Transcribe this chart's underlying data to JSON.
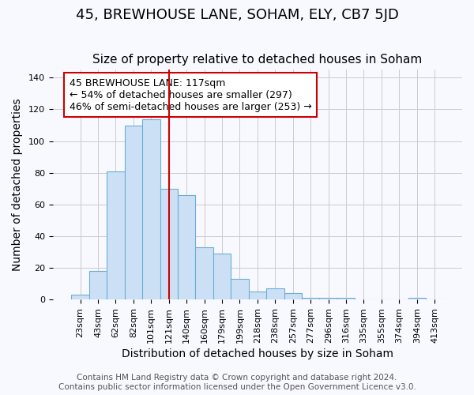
{
  "title": "45, BREWHOUSE LANE, SOHAM, ELY, CB7 5JD",
  "subtitle": "Size of property relative to detached houses in Soham",
  "xlabel": "Distribution of detached houses by size in Soham",
  "ylabel": "Number of detached properties",
  "footer_lines": [
    "Contains HM Land Registry data © Crown copyright and database right 2024.",
    "Contains public sector information licensed under the Open Government Licence v3.0."
  ],
  "bin_labels": [
    "23sqm",
    "43sqm",
    "62sqm",
    "82sqm",
    "101sqm",
    "121sqm",
    "140sqm",
    "160sqm",
    "179sqm",
    "199sqm",
    "218sqm",
    "238sqm",
    "257sqm",
    "277sqm",
    "296sqm",
    "316sqm",
    "335sqm",
    "355sqm",
    "374sqm",
    "394sqm",
    "413sqm"
  ],
  "bar_heights": [
    3,
    18,
    81,
    110,
    114,
    70,
    66,
    33,
    29,
    13,
    5,
    7,
    4,
    1,
    1,
    1,
    0,
    0,
    0,
    1,
    0
  ],
  "bar_color": "#cce0f5",
  "bar_edge_color": "#6baed6",
  "vline_index": 5,
  "vline_color": "#cc0000",
  "annotation_text": "45 BREWHOUSE LANE: 117sqm\n← 54% of detached houses are smaller (297)\n46% of semi-detached houses are larger (253) →",
  "annotation_box_edge_color": "#cc0000",
  "ylim": [
    0,
    145
  ],
  "yticks": [
    0,
    20,
    40,
    60,
    80,
    100,
    120,
    140
  ],
  "grid_color": "#cccccc",
  "bg_color": "#f8f8ff",
  "title_fontsize": 13,
  "subtitle_fontsize": 11,
  "xlabel_fontsize": 10,
  "ylabel_fontsize": 10,
  "tick_fontsize": 8,
  "annotation_fontsize": 9,
  "footer_fontsize": 7.5
}
